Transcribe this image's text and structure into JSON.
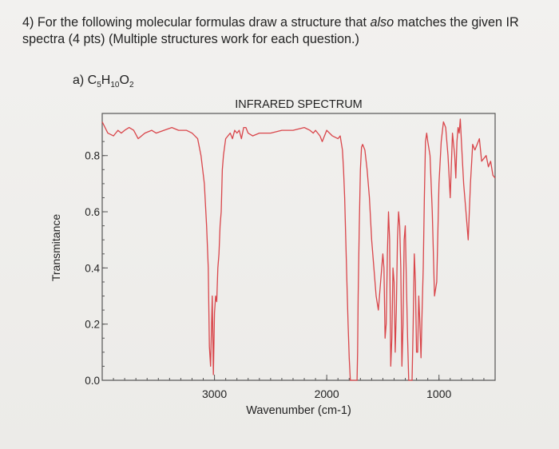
{
  "question": {
    "line1_pre": "4) For the following molecular formulas draw a structure that ",
    "line1_italic": "also",
    "line1_post": " matches the given IR",
    "line2": "spectra (4 pts) (Multiple structures work for each question.)"
  },
  "part": {
    "label": "a) ",
    "c": "C",
    "c_sub": "5",
    "h": "H",
    "h_sub": "10",
    "o": "O",
    "o_sub": "2"
  },
  "colors": {
    "line": "#d9454a",
    "axis": "#555555",
    "text": "#222222"
  },
  "chart_data": {
    "type": "line",
    "title": "INFRARED SPECTRUM",
    "xlabel": "Wavenumber (cm-1)",
    "ylabel": "Transmitance",
    "x_inverted": true,
    "xlim": [
      4000,
      500
    ],
    "ylim": [
      0.0,
      0.95
    ],
    "xticks": [
      3000,
      2000,
      1000
    ],
    "yticks": [
      0.0,
      0.2,
      0.4,
      0.6,
      0.8
    ],
    "xtick_labels": [
      "3000",
      "2000",
      "1000"
    ],
    "ytick_labels": [
      "0.0",
      "0.2",
      "0.4",
      "0.6",
      "0.8"
    ],
    "grid": false,
    "series": [
      {
        "x": [
          4000,
          3950,
          3900,
          3860,
          3830,
          3800,
          3760,
          3720,
          3680,
          3620,
          3560,
          3520,
          3450,
          3380,
          3320,
          3250,
          3200,
          3150,
          3120,
          3090,
          3070,
          3055,
          3045,
          3035,
          3020,
          3010,
          3000,
          2990,
          2980,
          2970,
          2960,
          2950,
          2940,
          2930,
          2920,
          2900,
          2880,
          2860,
          2840,
          2820,
          2800,
          2780,
          2760,
          2740,
          2720,
          2700,
          2660,
          2600,
          2500,
          2400,
          2300,
          2200,
          2150,
          2120,
          2100,
          2080,
          2060,
          2040,
          2000,
          1950,
          1900,
          1880,
          1860,
          1850,
          1840,
          1830,
          1820,
          1810,
          1800,
          1790,
          1780,
          1775,
          1770,
          1765,
          1760,
          1755,
          1750,
          1745,
          1740,
          1735,
          1730,
          1725,
          1720,
          1710,
          1700,
          1690,
          1680,
          1660,
          1640,
          1620,
          1600,
          1580,
          1560,
          1540,
          1520,
          1500,
          1490,
          1480,
          1470,
          1460,
          1450,
          1440,
          1430,
          1420,
          1410,
          1400,
          1390,
          1380,
          1370,
          1360,
          1350,
          1340,
          1330,
          1320,
          1310,
          1300,
          1290,
          1280,
          1270,
          1260,
          1250,
          1240,
          1230,
          1220,
          1210,
          1200,
          1190,
          1180,
          1170,
          1160,
          1150,
          1140,
          1130,
          1120,
          1110,
          1100,
          1080,
          1060,
          1040,
          1020,
          1000,
          980,
          960,
          940,
          920,
          900,
          880,
          860,
          850,
          840,
          830,
          820,
          810,
          800,
          780,
          760,
          740,
          720,
          700,
          680,
          660,
          640,
          620,
          600,
          580,
          560,
          540,
          520,
          500
        ],
        "y": [
          0.92,
          0.88,
          0.87,
          0.89,
          0.88,
          0.89,
          0.9,
          0.89,
          0.86,
          0.88,
          0.89,
          0.88,
          0.89,
          0.9,
          0.89,
          0.89,
          0.88,
          0.86,
          0.8,
          0.7,
          0.55,
          0.4,
          0.12,
          0.05,
          0.3,
          0.02,
          0.24,
          0.3,
          0.28,
          0.4,
          0.45,
          0.55,
          0.6,
          0.75,
          0.8,
          0.86,
          0.87,
          0.88,
          0.86,
          0.89,
          0.88,
          0.89,
          0.86,
          0.9,
          0.9,
          0.88,
          0.87,
          0.88,
          0.88,
          0.89,
          0.89,
          0.9,
          0.89,
          0.88,
          0.89,
          0.88,
          0.87,
          0.85,
          0.89,
          0.87,
          0.86,
          0.87,
          0.82,
          0.75,
          0.65,
          0.5,
          0.35,
          0.2,
          0.08,
          0.0,
          0.0,
          0.0,
          0.0,
          0.0,
          0.0,
          0.0,
          0.0,
          0.0,
          0.0,
          0.0,
          0.0,
          0.1,
          0.3,
          0.55,
          0.75,
          0.83,
          0.84,
          0.82,
          0.75,
          0.65,
          0.5,
          0.4,
          0.3,
          0.25,
          0.35,
          0.45,
          0.4,
          0.15,
          0.2,
          0.45,
          0.6,
          0.5,
          0.05,
          0.15,
          0.4,
          0.35,
          0.1,
          0.25,
          0.5,
          0.6,
          0.55,
          0.4,
          0.05,
          0.2,
          0.5,
          0.55,
          0.35,
          0.15,
          0.0,
          0.0,
          0.0,
          0.0,
          0.2,
          0.45,
          0.35,
          0.1,
          0.1,
          0.3,
          0.2,
          0.08,
          0.25,
          0.4,
          0.65,
          0.85,
          0.88,
          0.85,
          0.8,
          0.6,
          0.3,
          0.35,
          0.7,
          0.85,
          0.92,
          0.9,
          0.8,
          0.65,
          0.88,
          0.8,
          0.72,
          0.85,
          0.9,
          0.88,
          0.93,
          0.85,
          0.7,
          0.6,
          0.5,
          0.7,
          0.84,
          0.82,
          0.84,
          0.86,
          0.78,
          0.79,
          0.8,
          0.76,
          0.78,
          0.73,
          0.72
        ]
      }
    ]
  }
}
